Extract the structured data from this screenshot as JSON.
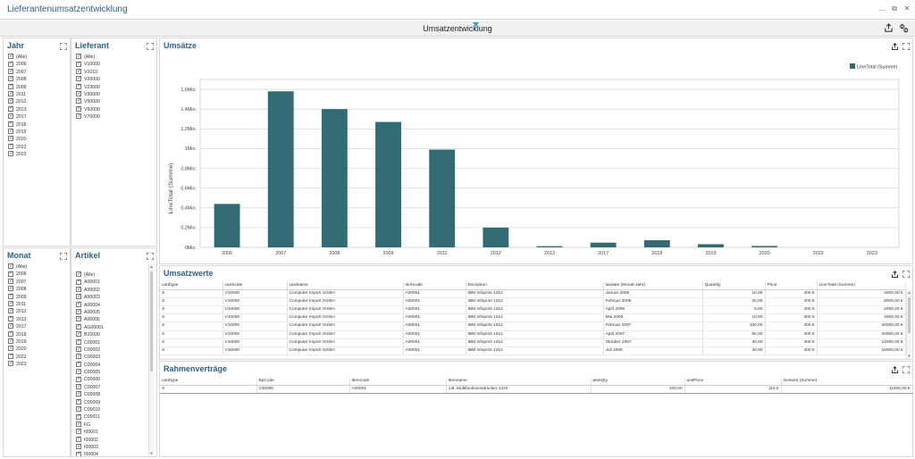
{
  "window": {
    "title": "Lieferantenumsatzentwicklung",
    "minimize": "...",
    "restore": "⧉",
    "close": "✕"
  },
  "dashboard": {
    "title": "Umsatzentwicklung"
  },
  "filters": {
    "jahr": {
      "title": "Jahr",
      "items": [
        "(Alle)",
        "2006",
        "2007",
        "2008",
        "2009",
        "2011",
        "2012",
        "2013",
        "2017",
        "2018",
        "2019",
        "2020",
        "2022",
        "2023"
      ]
    },
    "lieferant": {
      "title": "Lieferant",
      "items": [
        "(Alle)",
        "V10000",
        "V1010",
        "V20000",
        "V23000",
        "V30000",
        "V50000",
        "V60000",
        "V70000"
      ]
    },
    "monat": {
      "title": "Monat",
      "items": [
        "(Alle)",
        "2006",
        "2007",
        "2008",
        "2009",
        "2011",
        "2012",
        "2013",
        "2017",
        "2018",
        "2019",
        "2020",
        "2022",
        "2023"
      ]
    },
    "artikel": {
      "title": "Artikel",
      "items": [
        "(Alle)",
        "A00001",
        "A00002",
        "A00003",
        "A00004",
        "A00005",
        "A00006",
        "AG00001",
        "B10000",
        "C00001",
        "C00002",
        "C00003",
        "C00004",
        "C00005",
        "C00006",
        "C00007",
        "C00008",
        "C00009",
        "C00010",
        "C00011",
        "FG",
        "I00001",
        "I00002",
        "I00003",
        "I00004"
      ]
    }
  },
  "chart_panel": {
    "title": "Umsätze"
  },
  "chart_data": {
    "type": "bar",
    "categories": [
      "2006",
      "2007",
      "2008",
      "2009",
      "2011",
      "2012",
      "2013",
      "2017",
      "2018",
      "2019",
      "2020",
      "2022",
      "2023"
    ],
    "series": [
      {
        "name": "LineTotal (Summe)",
        "values": [
          440000,
          1580000,
          1400000,
          1270000,
          990000,
          200000,
          12000,
          48000,
          72000,
          32000,
          14000,
          0,
          0
        ]
      }
    ],
    "ylabel": "LineTotal (Summe)",
    "yticks": [
      "0Mio.",
      "0,2Mio.",
      "0,4Mio.",
      "0,6Mio.",
      "0,8Mio.",
      "1Mio.",
      "1,2Mio.",
      "1,4Mio.",
      "1,6Mio."
    ],
    "ylim": [
      0,
      1700000
    ],
    "legend": "top-right",
    "grid": true,
    "bar_color": "#336b74"
  },
  "umsatzwerte": {
    "title": "Umsatzwerte",
    "columns": [
      "cardtype",
      "cardcode",
      "cardname",
      "itemcode",
      "Dscription",
      "taxdate (Monat-Jahr)",
      "Quantity",
      "Price",
      "LineTotal (Summe)"
    ],
    "rows": [
      [
        "S",
        "V10000",
        "Computer Import GmbH",
        "A00001",
        "IBM Infoprint 1312",
        "Januar 2006",
        "10,00",
        "400 €",
        "4000,00 €"
      ],
      [
        "S",
        "V10000",
        "Computer Import GmbH",
        "A00001",
        "IBM Infoprint 1312",
        "Februar 2006",
        "20,00",
        "400 €",
        "8000,00 €"
      ],
      [
        "S",
        "V10000",
        "Computer Import GmbH",
        "A00001",
        "IBM Infoprint 1312",
        "April 2006",
        "5,00",
        "400 €",
        "2000,00 €"
      ],
      [
        "S",
        "V10000",
        "Computer Import GmbH",
        "A00001",
        "IBM Infoprint 1312",
        "Mai 2006",
        "10,00",
        "400 €",
        "4000,00 €"
      ],
      [
        "S",
        "V10000",
        "Computer Import GmbH",
        "A00001",
        "IBM Infoprint 1312",
        "Februar 2007",
        "100,00",
        "400 €",
        "40000,00 €"
      ],
      [
        "S",
        "V10000",
        "Computer Import GmbH",
        "A00001",
        "IBM Infoprint 1312",
        "April 2007",
        "50,00",
        "400 €",
        "20000,00 €"
      ],
      [
        "S",
        "V10000",
        "Computer Import GmbH",
        "A00001",
        "IBM Infoprint 1312",
        "Oktober 2007",
        "30,00",
        "400 €",
        "12000,00 €"
      ],
      [
        "S",
        "V10000",
        "Computer Import GmbH",
        "A00001",
        "IBM Infoprint 1312",
        "Juli 2008",
        "40,00",
        "400 €",
        "16000,00 €"
      ]
    ]
  },
  "rahmenvertraege": {
    "title": "Rahmenverträge",
    "columns": [
      "cardtype",
      "BpCode",
      "Itemcode",
      "Itemname",
      "planQty",
      "unitPrice",
      "Gesamt (Summe)"
    ],
    "rows": [
      [
        "S",
        "V30000",
        "A00001",
        "J.B. Multifunktionsdrucker 1420",
        "100,00",
        "110 €",
        "11000,00 €"
      ]
    ]
  }
}
